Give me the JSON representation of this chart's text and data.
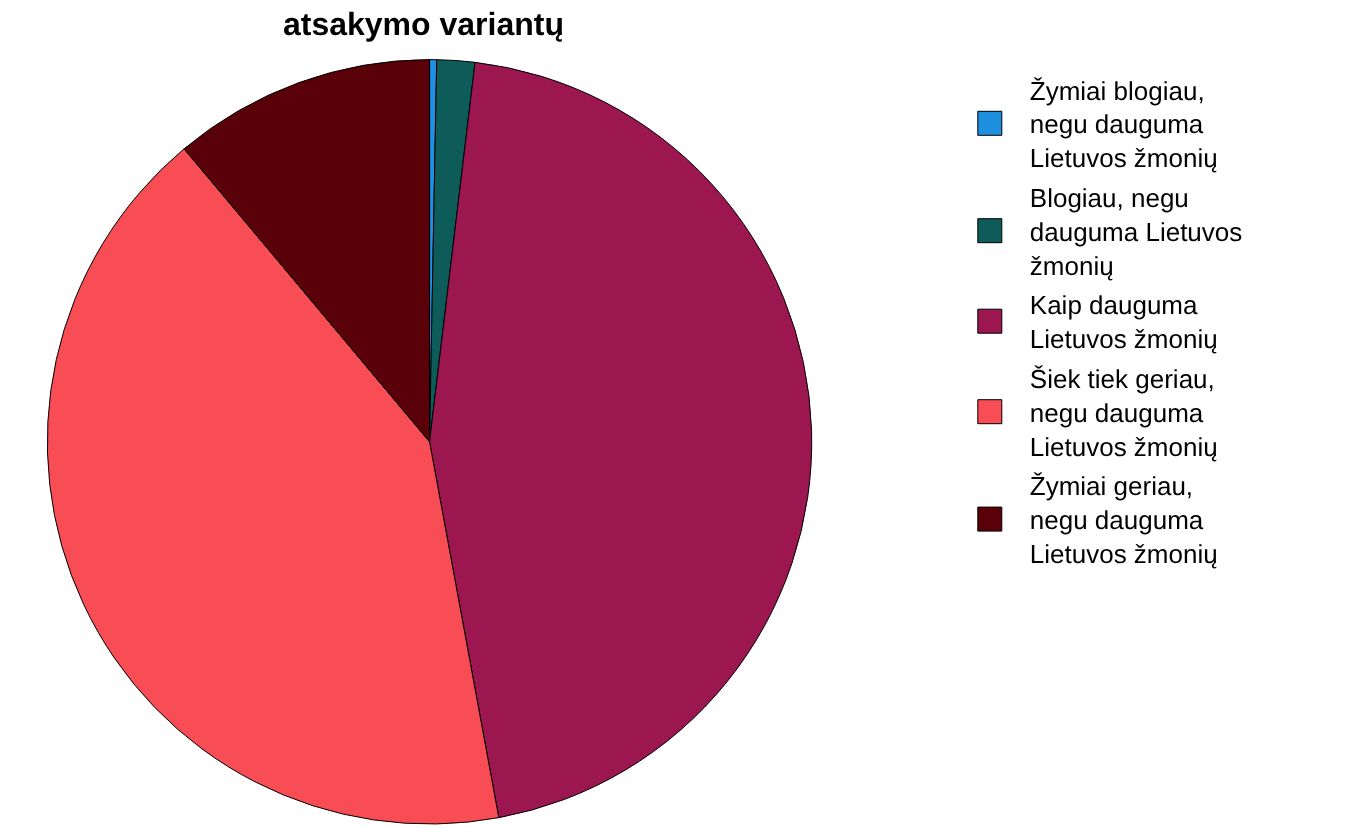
{
  "chart_data": {
    "type": "pie",
    "title": "atsakymo variantų",
    "categories": [
      "Žymiai blogiau, negu dauguma Lietuvos žmonių",
      "Blogiau, negu dauguma Lietuvos žmonių",
      "Kaip dauguma Lietuvos žmonių",
      "Šiek tiek geriau, negu dauguma Lietuvos žmonių",
      "Žymiai geriau, negu dauguma Lietuvos žmonių"
    ],
    "values": [
      0.3,
      1.6,
      45.2,
      41.8,
      11.1
    ],
    "colors": [
      "#1f8fe0",
      "#0d5c5a",
      "#9c1650",
      "#f94d56",
      "#5a0008"
    ],
    "legend": "top right"
  }
}
